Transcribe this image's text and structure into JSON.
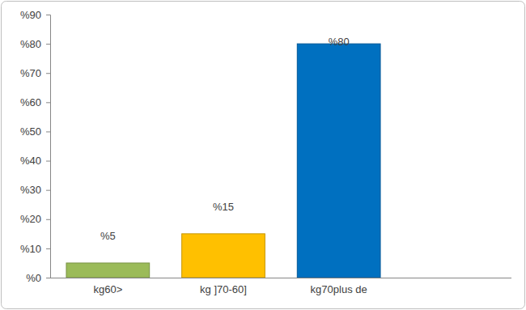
{
  "chart_data": {
    "type": "bar",
    "categories": [
      "kg60>",
      "kg ]70-60]",
      "kg70plus de"
    ],
    "values": [
      5,
      15,
      80
    ],
    "value_labels": [
      "%5",
      "%15",
      "%80"
    ],
    "colors": [
      "#9bbb59",
      "#ffc000",
      "#0070c0"
    ],
    "ylim": [
      0,
      90
    ],
    "yticks": [
      {
        "value": 0,
        "label": "%0"
      },
      {
        "value": 10,
        "label": "%10"
      },
      {
        "value": 20,
        "label": "%20"
      },
      {
        "value": 30,
        "label": "%30"
      },
      {
        "value": 40,
        "label": "%40"
      },
      {
        "value": 50,
        "label": "%50"
      },
      {
        "value": 60,
        "label": "%60"
      },
      {
        "value": 70,
        "label": "%70"
      },
      {
        "value": 80,
        "label": "%80"
      },
      {
        "value": 90,
        "label": "%90"
      }
    ],
    "data_labels": true,
    "grid": false
  }
}
